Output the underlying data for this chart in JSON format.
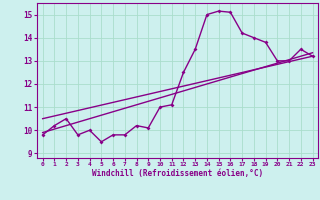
{
  "xlabel": "Windchill (Refroidissement éolien,°C)",
  "bg_color": "#cdf0ee",
  "line_color": "#880088",
  "grid_color": "#aaddcc",
  "xlim": [
    -0.5,
    23.5
  ],
  "ylim": [
    8.8,
    15.5
  ],
  "xticks": [
    0,
    1,
    2,
    3,
    4,
    5,
    6,
    7,
    8,
    9,
    10,
    11,
    12,
    13,
    14,
    15,
    16,
    17,
    18,
    19,
    20,
    21,
    22,
    23
  ],
  "yticks": [
    9,
    10,
    11,
    12,
    13,
    14,
    15
  ],
  "data_x": [
    0,
    1,
    2,
    3,
    4,
    5,
    6,
    7,
    8,
    9,
    10,
    11,
    12,
    13,
    14,
    15,
    16,
    17,
    18,
    19,
    20,
    21,
    22,
    23
  ],
  "data_y": [
    9.8,
    10.2,
    10.5,
    9.8,
    10.0,
    9.5,
    9.8,
    9.8,
    10.2,
    10.1,
    11.0,
    11.1,
    12.5,
    13.5,
    15.0,
    15.15,
    15.1,
    14.2,
    14.0,
    13.8,
    13.0,
    13.0,
    13.5,
    13.2
  ],
  "trend1_x": [
    0,
    23
  ],
  "trend1_y": [
    9.9,
    13.35
  ],
  "trend2_x": [
    0,
    23
  ],
  "trend2_y": [
    10.5,
    13.2
  ]
}
